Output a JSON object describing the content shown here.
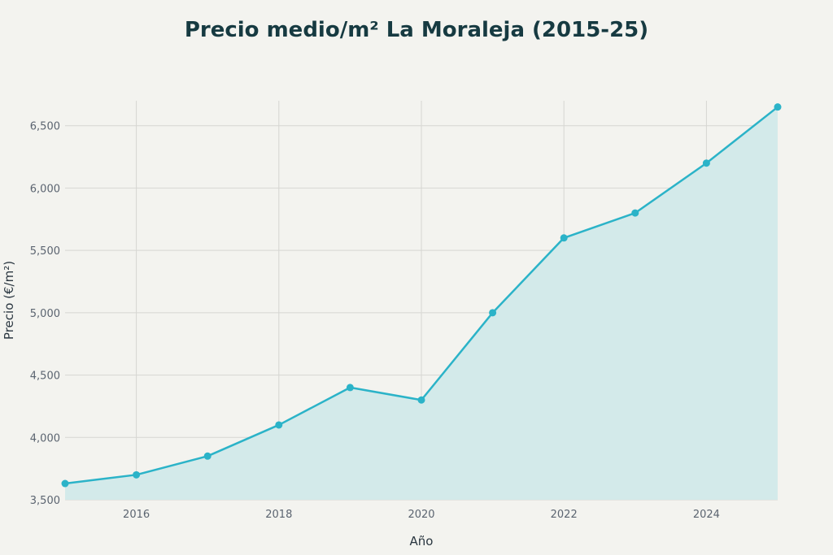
{
  "chart_data": {
    "type": "area",
    "title": "Precio medio/m² La Moraleja (2015-25)",
    "xlabel": "Año",
    "ylabel": "Precio (€/m²)",
    "x": [
      2015,
      2016,
      2017,
      2018,
      2019,
      2020,
      2021,
      2022,
      2023,
      2024,
      2025
    ],
    "values": [
      3630,
      3700,
      3850,
      4100,
      4400,
      4300,
      5000,
      5600,
      5800,
      6200,
      6650
    ],
    "xlim": [
      2015,
      2025
    ],
    "ylim": [
      3500,
      6700
    ],
    "x_ticks": [
      2016,
      2018,
      2020,
      2022,
      2024
    ],
    "x_tick_labels": [
      "2016",
      "2018",
      "2020",
      "2022",
      "2024"
    ],
    "y_ticks": [
      3500,
      4000,
      4500,
      5000,
      5500,
      6000,
      6500
    ],
    "y_tick_labels": [
      "3,500",
      "4,000",
      "4,500",
      "5,000",
      "5,500",
      "6,000",
      "6,500"
    ],
    "grid": true,
    "legend": "none",
    "colors": {
      "line": "#2bb3c8",
      "fill": "#d3eaea",
      "grid": "#d6d6d2",
      "title": "#163a41",
      "background": "#f3f3ef"
    }
  }
}
